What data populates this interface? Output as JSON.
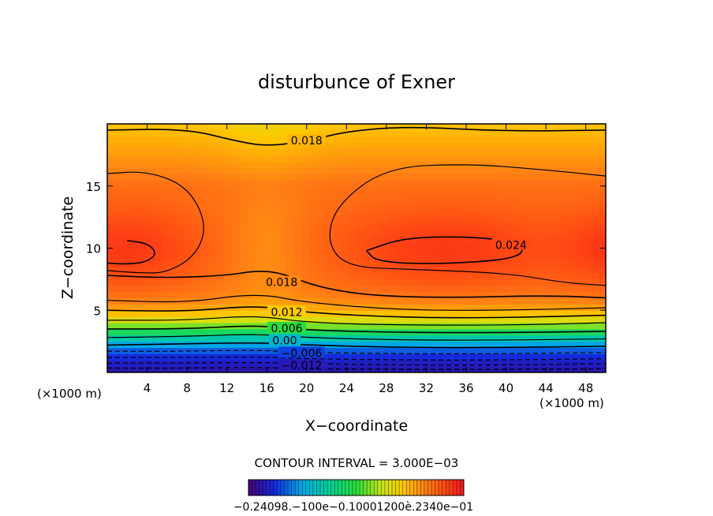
{
  "chart_data": {
    "type": "heatmap",
    "title": "disturbunce of Exner",
    "xlabel": "X−coordinate",
    "ylabel": "Z−coordinate",
    "x_unit_left": "(×1000 m)",
    "x_unit_right": "(×1000 m)",
    "xlim": [
      0,
      50
    ],
    "ylim": [
      0,
      20
    ],
    "x_ticks": [
      4,
      8,
      12,
      16,
      20,
      24,
      28,
      32,
      36,
      40,
      44,
      48
    ],
    "x_tick_labels": [
      "4",
      "8",
      "12",
      "16",
      "20",
      "24",
      "28",
      "32",
      "36",
      "40",
      "44",
      "48"
    ],
    "y_ticks": [
      5,
      10,
      15
    ],
    "y_tick_labels": [
      "5",
      "10",
      "15"
    ],
    "contour_interval_text": "CONTOUR INTERVAL = 3.000E−03",
    "contour_labels": [
      {
        "text": "0.018",
        "x": 20,
        "z": 18.6
      },
      {
        "text": "0.024",
        "x": 40.5,
        "z": 10.2
      },
      {
        "text": "0.018",
        "x": 17.5,
        "z": 7.2
      },
      {
        "text": "0.012",
        "x": 18,
        "z": 4.8
      },
      {
        "text": "0.006",
        "x": 18,
        "z": 3.5
      },
      {
        "text": "0.00",
        "x": 17.8,
        "z": 2.5
      },
      {
        "text": "−0.006",
        "x": 19.5,
        "z": 1.5
      },
      {
        "text": "−0.012",
        "x": 19.5,
        "z": 0.5
      }
    ],
    "colorbar": {
      "min": -0.024,
      "max": 0.027,
      "tick_labels_text": "−0.24098.−100e−0.10001200è.2340e−01"
    }
  }
}
